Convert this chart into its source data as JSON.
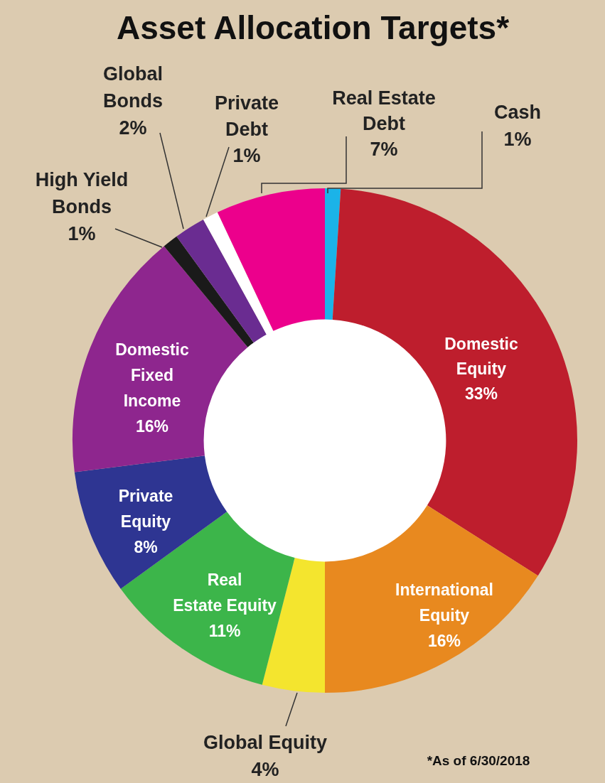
{
  "chart_data": {
    "type": "donut",
    "title": "Asset Allocation Targets*",
    "categories": [
      "Cash",
      "Domestic Equity",
      "International Equity",
      "Global Equity",
      "Real Estate Equity",
      "Private Equity",
      "Domestic Fixed Income",
      "High Yield Bonds",
      "Global Bonds",
      "Private Debt",
      "Real Estate Debt"
    ],
    "values": [
      1,
      33,
      16,
      4,
      11,
      8,
      16,
      1,
      2,
      1,
      7
    ],
    "colors": [
      "#1bb3e8",
      "#be1e2d",
      "#e8891f",
      "#f4e52e",
      "#3cb54a",
      "#2e3592",
      "#8e268e",
      "#1a1a1a",
      "#6a2c91",
      "#ffffff",
      "#ec008c"
    ],
    "value_labels": [
      "1%",
      "33%",
      "16%",
      "4%",
      "11%",
      "8%",
      "16%",
      "1%",
      "2%",
      "1%",
      "7%"
    ],
    "legend": false,
    "annotations": [
      "*As of 6/30/2018"
    ]
  }
}
